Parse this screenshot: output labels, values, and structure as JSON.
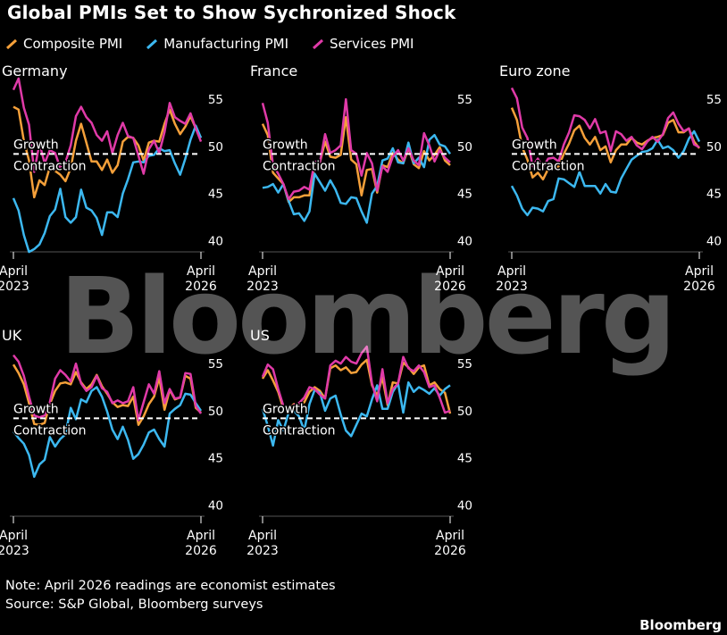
{
  "title": "Global PMIs Set to Show Sychronized Shock",
  "legend": [
    {
      "name": "Composite PMI",
      "color": "#f5a03a"
    },
    {
      "name": "Manufacturing PMI",
      "color": "#3cb8f0"
    },
    {
      "name": "Services PMI",
      "color": "#e03aa8"
    }
  ],
  "watermark": "Bloomberg",
  "note": "Note: April 2026 readings are economist estimates",
  "source": "Source: S&P Global, Bloomberg surveys",
  "brand": "Bloomberg",
  "chart_data": [
    {
      "type": "line",
      "title": "Germany",
      "x": [
        "2023-04",
        "2023-05",
        "2023-06",
        "2023-07",
        "2023-08",
        "2023-09",
        "2023-10",
        "2023-11",
        "2023-12",
        "2024-01",
        "2024-02",
        "2024-03",
        "2024-04",
        "2024-05",
        "2024-06",
        "2024-07",
        "2024-08",
        "2024-09",
        "2024-10",
        "2024-11",
        "2024-12",
        "2025-01",
        "2025-02",
        "2025-03",
        "2025-04",
        "2025-05",
        "2025-06",
        "2025-07",
        "2025-08",
        "2025-09",
        "2025-10",
        "2025-11",
        "2025-12",
        "2026-01",
        "2026-02",
        "2026-03",
        "2026-04"
      ],
      "x_tick_labels": [
        {
          "top": "April",
          "bottom": "2023"
        },
        {
          "top": "April",
          "bottom": "2026"
        }
      ],
      "ylim": [
        39,
        57
      ],
      "yticks": [
        40,
        45,
        50,
        55
      ],
      "reference_line": {
        "value": 49.2,
        "above_label": "Growth",
        "below_label": "Contraction"
      },
      "series": [
        {
          "name": "Composite PMI",
          "values": [
            54.2,
            53.9,
            50.6,
            48.5,
            44.6,
            46.4,
            45.9,
            47.8,
            47.4,
            47.0,
            46.3,
            47.7,
            50.6,
            52.4,
            50.4,
            48.4,
            48.4,
            47.5,
            48.6,
            47.2,
            48.0,
            50.5,
            51.0,
            50.9,
            50.1,
            48.5,
            50.4,
            50.6,
            50.5,
            52.4,
            53.9,
            52.4,
            51.3,
            52.1,
            53.2,
            51.9,
            50.9
          ]
        },
        {
          "name": "Manufacturing PMI",
          "values": [
            44.5,
            43.2,
            40.6,
            38.8,
            39.1,
            39.6,
            40.8,
            42.6,
            43.3,
            45.5,
            42.5,
            41.9,
            42.5,
            45.4,
            43.5,
            43.2,
            42.4,
            40.6,
            43.0,
            43.0,
            42.5,
            45.0,
            46.5,
            48.3,
            48.4,
            48.3,
            49.0,
            49.1,
            49.8,
            49.5,
            49.6,
            48.2,
            47.0,
            48.7,
            50.7,
            52.2,
            50.9
          ]
        },
        {
          "name": "Services PMI",
          "values": [
            56.0,
            57.2,
            54.1,
            52.3,
            47.3,
            50.3,
            48.2,
            49.6,
            49.3,
            47.7,
            48.3,
            50.1,
            53.2,
            54.2,
            53.1,
            52.5,
            51.2,
            50.6,
            51.6,
            49.3,
            51.2,
            52.5,
            51.1,
            50.9,
            49.0,
            47.1,
            49.7,
            50.6,
            49.3,
            51.5,
            54.6,
            53.1,
            52.7,
            52.4,
            53.5,
            51.9,
            50.5
          ]
        }
      ]
    },
    {
      "type": "line",
      "title": "France",
      "x": [
        "2023-04",
        "2023-05",
        "2023-06",
        "2023-07",
        "2023-08",
        "2023-09",
        "2023-10",
        "2023-11",
        "2023-12",
        "2024-01",
        "2024-02",
        "2024-03",
        "2024-04",
        "2024-05",
        "2024-06",
        "2024-07",
        "2024-08",
        "2024-09",
        "2024-10",
        "2024-11",
        "2024-12",
        "2025-01",
        "2025-02",
        "2025-03",
        "2025-04",
        "2025-05",
        "2025-06",
        "2025-07",
        "2025-08",
        "2025-09",
        "2025-10",
        "2025-11",
        "2025-12",
        "2026-01",
        "2026-02",
        "2026-03",
        "2026-04"
      ],
      "x_tick_labels": [
        {
          "top": "April",
          "bottom": "2023"
        },
        {
          "top": "April",
          "bottom": "2026"
        }
      ],
      "ylim": [
        39,
        57
      ],
      "yticks": [
        40,
        45,
        50,
        55
      ],
      "reference_line": {
        "value": 49.2,
        "above_label": "Growth",
        "below_label": "Contraction"
      },
      "series": [
        {
          "name": "Composite PMI",
          "values": [
            52.4,
            51.2,
            47.2,
            46.6,
            46.0,
            44.1,
            44.6,
            44.6,
            44.8,
            44.8,
            48.3,
            48.3,
            50.5,
            48.9,
            48.8,
            49.1,
            53.1,
            48.6,
            48.1,
            44.8,
            47.5,
            47.6,
            45.1,
            48.0,
            47.8,
            49.3,
            48.6,
            48.2,
            49.8,
            48.1,
            47.7,
            49.5,
            48.5,
            49.1,
            49.9,
            48.5,
            48.0
          ]
        },
        {
          "name": "Manufacturing PMI",
          "values": [
            45.6,
            45.7,
            46.0,
            45.1,
            46.0,
            44.2,
            42.8,
            42.9,
            42.1,
            43.1,
            47.1,
            46.2,
            45.3,
            46.4,
            45.4,
            44.0,
            43.9,
            44.6,
            44.5,
            43.1,
            41.9,
            45.0,
            45.8,
            48.5,
            48.7,
            49.8,
            48.3,
            48.2,
            50.4,
            48.2,
            48.8,
            47.8,
            50.7,
            51.2,
            50.2,
            50.0,
            49.2
          ]
        },
        {
          "name": "Services PMI",
          "values": [
            54.6,
            52.5,
            48.0,
            47.1,
            46.0,
            44.4,
            45.2,
            45.3,
            45.7,
            45.4,
            48.4,
            48.3,
            51.3,
            49.3,
            49.6,
            50.1,
            55.0,
            49.6,
            49.2,
            46.9,
            49.3,
            48.2,
            45.3,
            47.9,
            47.3,
            48.9,
            49.6,
            48.5,
            49.8,
            48.5,
            48.0,
            51.4,
            50.1,
            48.4,
            49.6,
            48.8,
            48.3
          ]
        }
      ]
    },
    {
      "type": "line",
      "title": "Euro zone",
      "x": [
        "2023-04",
        "2023-05",
        "2023-06",
        "2023-07",
        "2023-08",
        "2023-09",
        "2023-10",
        "2023-11",
        "2023-12",
        "2024-01",
        "2024-02",
        "2024-03",
        "2024-04",
        "2024-05",
        "2024-06",
        "2024-07",
        "2024-08",
        "2024-09",
        "2024-10",
        "2024-11",
        "2024-12",
        "2025-01",
        "2025-02",
        "2025-03",
        "2025-04",
        "2025-05",
        "2025-06",
        "2025-07",
        "2025-08",
        "2025-09",
        "2025-10",
        "2025-11",
        "2025-12",
        "2026-01",
        "2026-02",
        "2026-03",
        "2026-04"
      ],
      "x_tick_labels": [
        {
          "top": "April",
          "bottom": "2023"
        },
        {
          "top": "April",
          "bottom": "2026"
        }
      ],
      "ylim": [
        39,
        57
      ],
      "yticks": [
        40,
        45,
        50,
        55
      ],
      "reference_line": {
        "value": 49.2,
        "above_label": "Growth",
        "below_label": "Contraction"
      },
      "series": [
        {
          "name": "Composite PMI",
          "values": [
            54.1,
            52.8,
            49.9,
            48.6,
            46.7,
            47.2,
            46.5,
            47.6,
            47.6,
            47.9,
            49.2,
            50.3,
            51.7,
            52.2,
            50.9,
            50.2,
            51.0,
            49.6,
            50.0,
            48.3,
            49.6,
            50.2,
            50.2,
            50.9,
            50.4,
            50.2,
            50.6,
            50.9,
            51.0,
            51.2,
            52.5,
            52.8,
            51.5,
            51.5,
            51.9,
            50.5,
            49.8
          ]
        },
        {
          "name": "Manufacturing PMI",
          "values": [
            45.8,
            44.8,
            43.4,
            42.7,
            43.5,
            43.4,
            43.1,
            44.2,
            44.4,
            46.6,
            46.5,
            46.1,
            45.7,
            47.3,
            45.8,
            45.8,
            45.8,
            45.0,
            46.0,
            45.2,
            45.1,
            46.6,
            47.6,
            48.6,
            49.0,
            49.4,
            49.5,
            49.8,
            50.7,
            49.8,
            50.0,
            49.6,
            48.8,
            49.5,
            50.8,
            51.6,
            50.5
          ]
        },
        {
          "name": "Services PMI",
          "values": [
            56.2,
            55.1,
            52.0,
            50.9,
            47.9,
            48.7,
            47.8,
            48.7,
            48.8,
            48.4,
            50.2,
            51.5,
            53.3,
            53.2,
            52.8,
            51.9,
            52.9,
            51.4,
            51.6,
            49.5,
            51.6,
            51.3,
            50.6,
            51.0,
            50.1,
            49.7,
            50.5,
            51.0,
            50.5,
            51.3,
            53.0,
            53.6,
            52.4,
            51.6,
            51.9,
            50.2,
            49.9
          ]
        }
      ]
    },
    {
      "type": "line",
      "title": "UK",
      "x": [
        "2023-04",
        "2023-05",
        "2023-06",
        "2023-07",
        "2023-08",
        "2023-09",
        "2023-10",
        "2023-11",
        "2023-12",
        "2024-01",
        "2024-02",
        "2024-03",
        "2024-04",
        "2024-05",
        "2024-06",
        "2024-07",
        "2024-08",
        "2024-09",
        "2024-10",
        "2024-11",
        "2024-12",
        "2025-01",
        "2025-02",
        "2025-03",
        "2025-04",
        "2025-05",
        "2025-06",
        "2025-07",
        "2025-08",
        "2025-09",
        "2025-10",
        "2025-11",
        "2025-12",
        "2026-01",
        "2026-02",
        "2026-03",
        "2026-04"
      ],
      "x_tick_labels": [
        {
          "top": "April",
          "bottom": "2023"
        },
        {
          "top": "April",
          "bottom": "2026"
        }
      ],
      "ylim": [
        39,
        57
      ],
      "yticks": [
        40,
        45,
        50,
        55
      ],
      "reference_line": {
        "value": 49.2,
        "above_label": "Growth",
        "below_label": "Contraction"
      },
      "series": [
        {
          "name": "Composite PMI",
          "values": [
            54.9,
            54.0,
            52.8,
            50.8,
            48.6,
            48.5,
            48.7,
            50.7,
            52.1,
            52.9,
            53.0,
            52.8,
            54.1,
            53.0,
            52.3,
            52.8,
            53.8,
            52.6,
            51.8,
            50.9,
            50.4,
            50.6,
            50.5,
            51.5,
            48.5,
            49.4,
            50.7,
            51.5,
            53.5,
            50.1,
            52.2,
            51.2,
            51.4,
            53.7,
            53.4,
            50.3,
            49.8
          ]
        },
        {
          "name": "Manufacturing PMI",
          "values": [
            47.8,
            47.1,
            46.5,
            45.3,
            43.0,
            44.3,
            44.8,
            47.2,
            46.2,
            47.0,
            47.5,
            50.3,
            49.1,
            51.2,
            50.9,
            52.1,
            52.5,
            51.5,
            49.9,
            48.0,
            47.0,
            48.3,
            46.9,
            44.9,
            45.4,
            46.4,
            47.7,
            48.0,
            47.0,
            46.2,
            49.7,
            50.2,
            50.6,
            51.8,
            51.7,
            50.8,
            50.0
          ]
        },
        {
          "name": "Services PMI",
          "values": [
            55.9,
            55.2,
            53.7,
            51.5,
            49.5,
            49.3,
            49.5,
            50.9,
            53.4,
            54.3,
            53.8,
            53.1,
            55.0,
            52.9,
            52.1,
            52.5,
            53.7,
            52.4,
            52.0,
            50.8,
            51.1,
            50.8,
            51.0,
            52.5,
            49.0,
            50.9,
            52.8,
            51.8,
            54.2,
            50.8,
            52.3,
            51.3,
            51.4,
            54.0,
            53.9,
            50.5,
            49.7
          ]
        }
      ]
    },
    {
      "type": "line",
      "title": "US",
      "x": [
        "2023-04",
        "2023-05",
        "2023-06",
        "2023-07",
        "2023-08",
        "2023-09",
        "2023-10",
        "2023-11",
        "2023-12",
        "2024-01",
        "2024-02",
        "2024-03",
        "2024-04",
        "2024-05",
        "2024-06",
        "2024-07",
        "2024-08",
        "2024-09",
        "2024-10",
        "2024-11",
        "2024-12",
        "2025-01",
        "2025-02",
        "2025-03",
        "2025-04",
        "2025-05",
        "2025-06",
        "2025-07",
        "2025-08",
        "2025-09",
        "2025-10",
        "2025-11",
        "2025-12",
        "2026-01",
        "2026-02",
        "2026-03",
        "2026-04"
      ],
      "x_tick_labels": [
        {
          "top": "April",
          "bottom": "2023"
        },
        {
          "top": "April",
          "bottom": "2026"
        }
      ],
      "ylim": [
        39,
        57
      ],
      "yticks": [
        40,
        45,
        50,
        55
      ],
      "reference_line": {
        "value": 49.2,
        "above_label": "Growth",
        "below_label": "Contraction"
      },
      "series": [
        {
          "name": "Composite PMI",
          "values": [
            53.4,
            54.3,
            53.2,
            52.0,
            50.2,
            50.2,
            50.7,
            50.7,
            50.9,
            52.0,
            52.5,
            52.1,
            51.3,
            54.5,
            54.8,
            54.3,
            54.6,
            54.0,
            54.1,
            54.9,
            55.4,
            52.7,
            51.6,
            53.5,
            50.6,
            53.0,
            52.9,
            55.1,
            54.6,
            53.9,
            54.6,
            54.8,
            52.7,
            53.0,
            52.3,
            51.9,
            49.7
          ]
        },
        {
          "name": "Manufacturing PMI",
          "values": [
            50.2,
            48.4,
            46.3,
            49.0,
            47.9,
            49.8,
            50.0,
            49.4,
            47.9,
            50.7,
            52.2,
            51.9,
            50.0,
            51.3,
            51.6,
            49.6,
            47.9,
            47.3,
            48.5,
            49.7,
            49.4,
            51.2,
            52.7,
            50.2,
            50.2,
            52.0,
            52.9,
            49.8,
            53.0,
            52.0,
            52.5,
            52.2,
            51.8,
            52.4,
            51.6,
            52.3,
            52.7
          ]
        },
        {
          "name": "Services PMI",
          "values": [
            53.6,
            54.9,
            54.4,
            52.3,
            50.5,
            50.1,
            50.6,
            50.8,
            51.4,
            52.5,
            52.3,
            51.7,
            51.3,
            54.8,
            55.3,
            55.0,
            55.7,
            55.2,
            55.0,
            56.1,
            56.8,
            52.9,
            51.0,
            54.4,
            50.8,
            52.3,
            52.9,
            55.7,
            54.5,
            54.2,
            54.8,
            54.1,
            52.5,
            52.7,
            51.4,
            49.8,
            50.0
          ]
        }
      ]
    }
  ]
}
